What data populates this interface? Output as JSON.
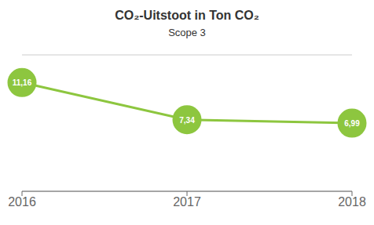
{
  "chart_data": {
    "type": "line",
    "title": "CO₂-Uitstoot in Ton CO₂",
    "subtitle": "Scope 3",
    "categories": [
      "2016",
      "2017",
      "2018"
    ],
    "values": [
      11.16,
      7.34,
      6.99
    ],
    "value_labels": [
      "11,16",
      "7,34",
      "6,99"
    ],
    "data_labels": true,
    "color": "#8DC63F",
    "marker": "circle",
    "ylim": [
      0,
      14
    ],
    "yticks": [
      0,
      2,
      4,
      6,
      8,
      10,
      12,
      14
    ],
    "grid": true,
    "tick_labels": "x"
  }
}
